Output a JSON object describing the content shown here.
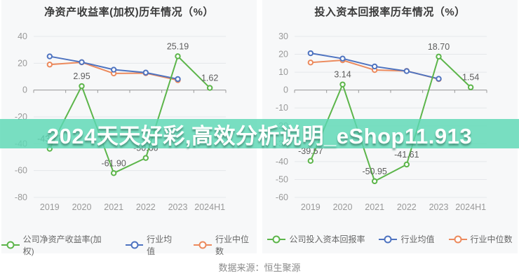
{
  "banner": {
    "text": "2024天天好彩,高效分析说明_eShop11.913",
    "bg_color": "#5CD8B5",
    "text_color": "#ffffff"
  },
  "source": {
    "text": "数据来源：恒生聚源"
  },
  "colors": {
    "company_green": "#5CB54A",
    "industry_mean_blue": "#4E73C0",
    "industry_median_orange": "#EC8A5D",
    "grid": "#e5e7ea",
    "axis": "#999999",
    "tick_label": "#999999",
    "data_label": "#5d5d5d"
  },
  "chart_data": [
    {
      "type": "line",
      "title": "净资产收益率(加权)历年情况（%）",
      "categories": [
        "2019",
        "2020",
        "2021",
        "2022",
        "2023",
        "2024H1"
      ],
      "ylim": [
        -80,
        40
      ],
      "ytick_step": 20,
      "grid": true,
      "legend_position": "bottom",
      "series": [
        {
          "name": "公司净资产收益率(加权)",
          "color": "#5CB54A",
          "values": [
            -43.77,
            2.95,
            -61.9,
            -50.6,
            25.19,
            1.62
          ],
          "labels": [
            "-43.77",
            "2.95",
            "-61.90",
            "-50.60",
            "25.19",
            "1.62"
          ]
        },
        {
          "name": "行业均值",
          "color": "#4E73C0",
          "values": [
            25.1,
            20.8,
            15.2,
            13.0,
            8.2,
            null
          ]
        },
        {
          "name": "行业中位数",
          "color": "#EC8A5D",
          "values": [
            19.0,
            20.7,
            12.4,
            12.6,
            7.4,
            null
          ]
        }
      ]
    },
    {
      "type": "line",
      "title": "投入资本回报率历年情况（%）",
      "categories": [
        "2019",
        "2020",
        "2021",
        "2022",
        "2023",
        "2024H1"
      ],
      "ylim": [
        -60,
        30
      ],
      "ytick_step": 10,
      "grid": true,
      "legend_position": "bottom",
      "series": [
        {
          "name": "公司投入资本回报率",
          "color": "#5CB54A",
          "values": [
            -39.57,
            3.14,
            -50.95,
            -41.61,
            18.7,
            1.54
          ],
          "labels": [
            "-39.57",
            "3.14",
            "-50.95",
            "-41.61",
            "18.70",
            "1.54"
          ]
        },
        {
          "name": "行业均值",
          "color": "#4E73C0",
          "values": [
            20.6,
            17.6,
            13.2,
            10.6,
            6.3,
            null
          ]
        },
        {
          "name": "行业中位数",
          "color": "#EC8A5D",
          "values": [
            15.4,
            16.7,
            11.2,
            10.7,
            6.1,
            null
          ]
        }
      ]
    }
  ]
}
